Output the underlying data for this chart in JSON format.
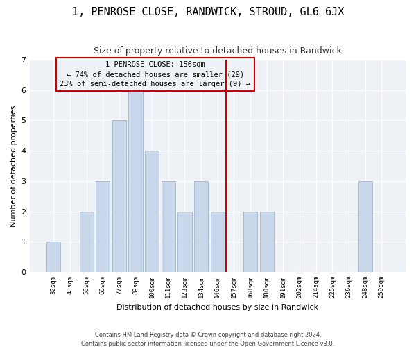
{
  "title": "1, PENROSE CLOSE, RANDWICK, STROUD, GL6 6JX",
  "subtitle": "Size of property relative to detached houses in Randwick",
  "xlabel": "Distribution of detached houses by size in Randwick",
  "ylabel": "Number of detached properties",
  "bar_labels": [
    "32sqm",
    "43sqm",
    "55sqm",
    "66sqm",
    "77sqm",
    "89sqm",
    "100sqm",
    "111sqm",
    "123sqm",
    "134sqm",
    "146sqm",
    "157sqm",
    "168sqm",
    "180sqm",
    "191sqm",
    "202sqm",
    "214sqm",
    "225sqm",
    "236sqm",
    "248sqm",
    "259sqm"
  ],
  "bar_heights": [
    1,
    0,
    2,
    3,
    5,
    6,
    4,
    3,
    2,
    3,
    2,
    0,
    2,
    2,
    0,
    0,
    0,
    0,
    0,
    3,
    0
  ],
  "bar_color": "#c8d8ea",
  "bar_edgecolor": "#9db8cf",
  "vline_x": 10.5,
  "vline_color": "#cc0000",
  "annotation_text": "1 PENROSE CLOSE: 156sqm\n← 74% of detached houses are smaller (29)\n23% of semi-detached houses are larger (9) →",
  "annotation_box_color": "#cc0000",
  "ylim": [
    0,
    7
  ],
  "yticks": [
    0,
    1,
    2,
    3,
    4,
    5,
    6,
    7
  ],
  "footer1": "Contains HM Land Registry data © Crown copyright and database right 2024.",
  "footer2": "Contains public sector information licensed under the Open Government Licence v3.0.",
  "bg_color": "#ffffff",
  "plot_bg_color": "#eef2f7",
  "grid_color": "#ffffff",
  "title_fontsize": 11,
  "subtitle_fontsize": 9
}
